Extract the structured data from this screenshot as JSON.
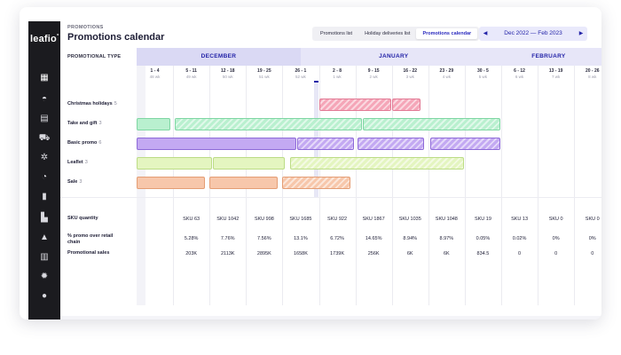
{
  "app": {
    "logo": "leafio",
    "logo_mark": "°"
  },
  "sidebar": {
    "icons": [
      "dashboard-icon",
      "cake-icon",
      "document-icon",
      "truck-icon",
      "settings-cog-icon",
      "gauge-icon",
      "bookmark-icon",
      "bar-chart-icon",
      "alert-icon",
      "report-icon",
      "gear-icon",
      "user-icon"
    ],
    "glyphs": [
      "▦",
      "◓",
      "▤",
      "⛟",
      "✲",
      "◔",
      "▮",
      "▙",
      "▲",
      "▥",
      "✹",
      "●"
    ]
  },
  "header": {
    "subtitle": "PROMOTIONS",
    "title": "Promotions calendar",
    "tabs": [
      "Promotions list",
      "Holiday deliveries list",
      "Promotions calendar"
    ],
    "active_tab": 2,
    "date_range": "Dec 2022 — Feb 2023",
    "prev": "◀",
    "next": "▶"
  },
  "calendar": {
    "promo_type_header": "PROMOTIONAL TYPE",
    "months": [
      "DECEMBER",
      "JANUARY",
      "FEBRUARY"
    ],
    "weeks": [
      {
        "range": "1 - 4",
        "wk": "48 wk"
      },
      {
        "range": "5 - 11",
        "wk": "49 wk"
      },
      {
        "range": "12 - 18",
        "wk": "50 wk"
      },
      {
        "range": "19 - 25",
        "wk": "51 wk"
      },
      {
        "range": "26 - 1",
        "wk": "52 wk"
      },
      {
        "range": "2 - 8",
        "wk": "1 wk"
      },
      {
        "range": "9 - 15",
        "wk": "2 wk"
      },
      {
        "range": "16 - 22",
        "wk": "3 wk"
      },
      {
        "range": "23 - 29",
        "wk": "4 wk"
      },
      {
        "range": "30 - 5",
        "wk": "5 wk"
      },
      {
        "range": "6 - 12",
        "wk": "6 wk"
      },
      {
        "range": "13 - 19",
        "wk": "7 wk"
      },
      {
        "range": "20 - 26",
        "wk": "8 wk"
      }
    ],
    "rows": [
      {
        "name": "Christmas holidays",
        "count": "5",
        "color": "#f5a6b8",
        "border": "#e27a95"
      },
      {
        "name": "Take and gift",
        "count": "3",
        "color": "#b9f0cf",
        "border": "#7fd6a3"
      },
      {
        "name": "Basic promo",
        "count": "6",
        "color": "#c3a9f2",
        "border": "#8e6bd8"
      },
      {
        "name": "Leaflet",
        "count": "3",
        "color": "#e4f5c0",
        "border": "#bcdc86"
      },
      {
        "name": "Sale",
        "count": "3",
        "color": "#f7c7ab",
        "border": "#e49d74"
      }
    ],
    "bars": [
      {
        "row": 0,
        "start": 5,
        "end": 7.0,
        "style": "stripe"
      },
      {
        "row": 0,
        "start": 7.0,
        "end": 7.8,
        "style": "stripe"
      },
      {
        "row": 1,
        "start": 0,
        "end": 0.95,
        "style": "none"
      },
      {
        "row": 1,
        "start": 1.05,
        "end": 6.2,
        "style": "stripe"
      },
      {
        "row": 1,
        "start": 6.2,
        "end": 10,
        "style": "stripe"
      },
      {
        "row": 2,
        "start": 0,
        "end": 4.4,
        "style": "none"
      },
      {
        "row": 2,
        "start": 4.4,
        "end": 5.98,
        "style": "stripe"
      },
      {
        "row": 2,
        "start": 6.05,
        "end": 7.9,
        "style": "stripe"
      },
      {
        "row": 2,
        "start": 8.05,
        "end": 10,
        "style": "stripe"
      },
      {
        "row": 3,
        "start": 0,
        "end": 2.1,
        "style": "none"
      },
      {
        "row": 3,
        "start": 2.1,
        "end": 4.1,
        "style": "none"
      },
      {
        "row": 3,
        "start": 4.2,
        "end": 9.0,
        "style": "stripe"
      },
      {
        "row": 4,
        "start": 0,
        "end": 1.9,
        "style": "none"
      },
      {
        "row": 4,
        "start": 2.0,
        "end": 3.9,
        "style": "none"
      },
      {
        "row": 4,
        "start": 4.0,
        "end": 5.9,
        "style": "stripe"
      }
    ],
    "metrics": [
      {
        "label": "SKU quantity",
        "values": [
          "SKU 63",
          "SKU 1042",
          "SKU 998",
          "SKU 1685",
          "SKU 922",
          "SKU 1867",
          "SKU 1035",
          "SKU 1048",
          "SKU 19",
          "SKU 13",
          "SKU 0",
          "SKU 0"
        ]
      },
      {
        "label": "% promo over retail chain",
        "values": [
          "5.28%",
          "7.76%",
          "7.56%",
          "13.1%",
          "6.72%",
          "14.65%",
          "8.94%",
          "8.97%",
          "0.05%",
          "0.02%",
          "0%",
          "0%"
        ]
      },
      {
        "label": "Promotional sales",
        "values": [
          "203K",
          "2113K",
          "2895K",
          "1658K",
          "1739K",
          "256K",
          "6K",
          "6K",
          "834.5",
          "0",
          "0",
          "0"
        ]
      }
    ]
  }
}
